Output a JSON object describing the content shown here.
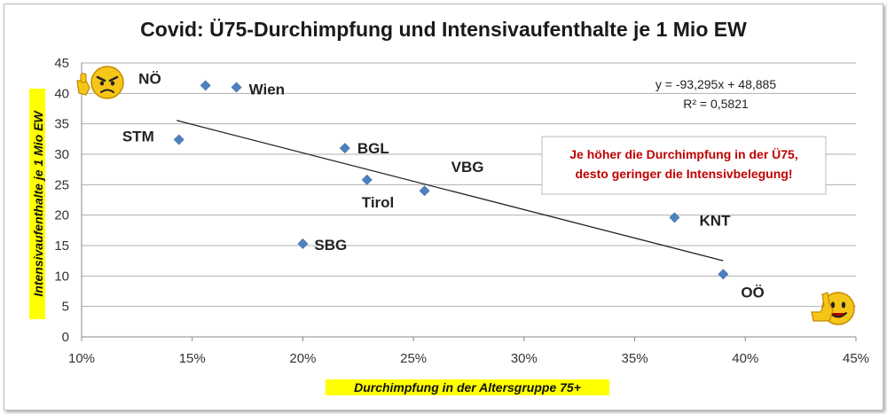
{
  "chart_data": {
    "type": "scatter",
    "title": "Covid: Ü75-Durchimpfung und Intensivaufenthalte je 1 Mio EW",
    "xlabel": "Durchimpfung in der Altersgruppe 75+",
    "ylabel": "Intensivaufenthalte je 1 Mio EW",
    "xlim": [
      0.1,
      0.45
    ],
    "ylim": [
      0,
      45
    ],
    "x_ticks": [
      "10%",
      "15%",
      "20%",
      "25%",
      "30%",
      "35%",
      "40%",
      "45%"
    ],
    "y_ticks": [
      "0",
      "5",
      "10",
      "15",
      "20",
      "25",
      "30",
      "35",
      "40",
      "45"
    ],
    "grid": "horizontal",
    "marker_color": "#4f81bd",
    "trendline_color": "#222222",
    "points": [
      {
        "label": "NÖ",
        "x": 0.156,
        "y": 41.3
      },
      {
        "label": "Wien",
        "x": 0.17,
        "y": 41.0
      },
      {
        "label": "STM",
        "x": 0.144,
        "y": 32.4
      },
      {
        "label": "BGL",
        "x": 0.219,
        "y": 31.0
      },
      {
        "label": "Tirol",
        "x": 0.229,
        "y": 25.8
      },
      {
        "label": "VBG",
        "x": 0.255,
        "y": 24.0
      },
      {
        "label": "SBG",
        "x": 0.2,
        "y": 15.3
      },
      {
        "label": "KNT",
        "x": 0.368,
        "y": 19.6
      },
      {
        "label": "OÖ",
        "x": 0.39,
        "y": 10.3
      }
    ],
    "trendline": {
      "x_range": [
        0.143,
        0.39
      ],
      "equation": "y = -93,295x + 48,885",
      "r_squared": "R² = 0,5821",
      "slope": -93.295,
      "intercept": 48.885
    },
    "annotation": {
      "line1": "Je höher die Durchimpfung  in der Ü75,",
      "line2": "desto geringer die Intensivbelegung!",
      "text_color": "#c00000"
    },
    "decorations": {
      "top_left_emoji": "angry-thumbs-down-emoji",
      "bottom_right_emoji": "happy-thumbs-up-emoji"
    }
  }
}
